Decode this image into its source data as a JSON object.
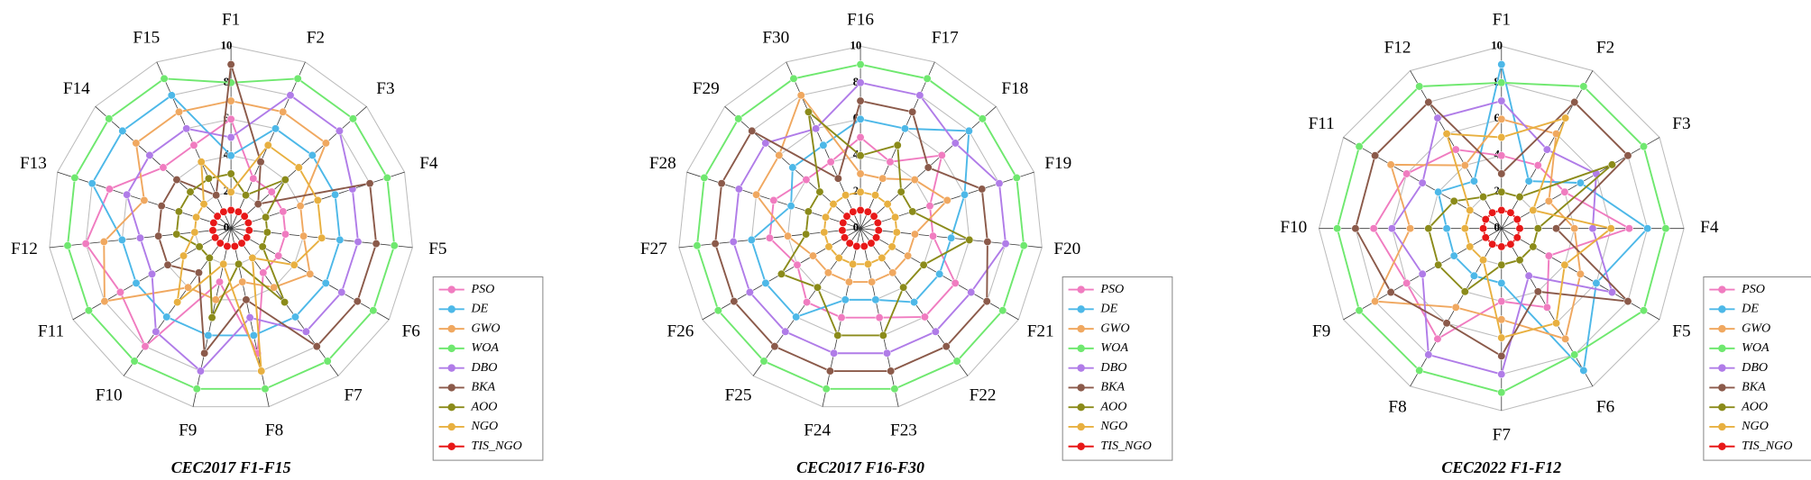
{
  "chart_data": [
    {
      "type": "radar",
      "title": "CEC2017 F1-F15",
      "categories": [
        "F1",
        "F2",
        "F3",
        "F4",
        "F5",
        "F6",
        "F7",
        "F8",
        "F9",
        "F10",
        "F11",
        "F12",
        "F13",
        "F14",
        "F15"
      ],
      "ylim": [
        0,
        10
      ],
      "yticks": [
        0,
        2,
        4,
        6,
        8,
        10
      ],
      "grid": true,
      "series": [
        {
          "name": "PSO",
          "color": "#f07cc0",
          "values": [
            6,
            3,
            3,
            3,
            3,
            3,
            3,
            7,
            3,
            8,
            7,
            8,
            7,
            5,
            5
          ]
        },
        {
          "name": "DE",
          "color": "#4db8e8",
          "values": [
            4,
            6,
            6,
            6,
            6,
            6,
            6,
            6,
            6,
            6,
            6,
            6,
            8,
            8,
            8
          ]
        },
        {
          "name": "GWO",
          "color": "#f0a860",
          "values": [
            7,
            7,
            7,
            4,
            4,
            5,
            4,
            3,
            4,
            4,
            8,
            7,
            5,
            7,
            7
          ]
        },
        {
          "name": "WOA",
          "color": "#6fe86f",
          "values": [
            8,
            9,
            9,
            9,
            9,
            9,
            9,
            9,
            9,
            9,
            9,
            9,
            9,
            9,
            9
          ]
        },
        {
          "name": "DBO",
          "color": "#b07ce8",
          "values": [
            5,
            8,
            8,
            7,
            7,
            7,
            7,
            5,
            8,
            7,
            5,
            5,
            6,
            6,
            6
          ]
        },
        {
          "name": "BKA",
          "color": "#8b5a4a",
          "values": [
            9,
            4,
            2,
            8,
            8,
            8,
            8,
            4,
            7,
            3,
            4,
            4,
            4,
            4,
            2
          ]
        },
        {
          "name": "AOO",
          "color": "#8b8b1a",
          "values": [
            3,
            2,
            4,
            2,
            2,
            2,
            5,
            2,
            5,
            2,
            2,
            3,
            3,
            3,
            3
          ]
        },
        {
          "name": "NGO",
          "color": "#e8b040",
          "values": [
            2,
            5,
            5,
            5,
            5,
            4,
            2,
            8,
            2,
            5,
            3,
            2,
            2,
            2,
            4
          ]
        },
        {
          "name": "TIS_NGO",
          "color": "#e81818",
          "values": [
            1,
            1,
            1,
            1,
            1,
            1,
            1,
            1,
            1,
            1,
            1,
            1,
            1,
            1,
            1
          ]
        }
      ]
    },
    {
      "type": "radar",
      "title": "CEC2017 F16-F30",
      "categories": [
        "F16",
        "F17",
        "F18",
        "F19",
        "F20",
        "F21",
        "F22",
        "F23",
        "F24",
        "F25",
        "F26",
        "F27",
        "F28",
        "F29",
        "F30"
      ],
      "ylim": [
        0,
        10
      ],
      "yticks": [
        0,
        2,
        4,
        6,
        8,
        10
      ],
      "grid": true,
      "series": [
        {
          "name": "PSO",
          "color": "#f07cc0",
          "values": [
            5,
            4,
            6,
            4,
            4,
            6,
            6,
            5,
            5,
            5,
            4,
            5,
            5,
            4,
            4
          ]
        },
        {
          "name": "DE",
          "color": "#4db8e8",
          "values": [
            6,
            6,
            8,
            6,
            5,
            5,
            5,
            4,
            4,
            6,
            6,
            6,
            4,
            5,
            5
          ]
        },
        {
          "name": "GWO",
          "color": "#f0a860",
          "values": [
            3,
            3,
            4,
            5,
            3,
            3,
            3,
            3,
            3,
            3,
            3,
            4,
            6,
            6,
            8
          ]
        },
        {
          "name": "WOA",
          "color": "#6fe86f",
          "values": [
            9,
            9,
            9,
            9,
            9,
            9,
            9,
            9,
            9,
            9,
            9,
            9,
            9,
            9,
            9
          ]
        },
        {
          "name": "DBO",
          "color": "#b07ce8",
          "values": [
            8,
            8,
            7,
            8,
            8,
            7,
            7,
            7,
            7,
            7,
            7,
            7,
            7,
            7,
            6
          ]
        },
        {
          "name": "BKA",
          "color": "#8b5a4a",
          "values": [
            7,
            7,
            5,
            7,
            7,
            8,
            8,
            8,
            8,
            8,
            8,
            8,
            8,
            8,
            3
          ]
        },
        {
          "name": "AOO",
          "color": "#8b8b1a",
          "values": [
            4,
            5,
            3,
            3,
            6,
            4,
            4,
            6,
            6,
            4,
            5,
            3,
            3,
            3,
            7
          ]
        },
        {
          "name": "NGO",
          "color": "#e8b040",
          "values": [
            2,
            2,
            2,
            2,
            2,
            2,
            2,
            2,
            2,
            2,
            2,
            2,
            2,
            2,
            2
          ]
        },
        {
          "name": "TIS_NGO",
          "color": "#e81818",
          "values": [
            1,
            1,
            1,
            1,
            1,
            1,
            1,
            1,
            1,
            1,
            1,
            1,
            1,
            1,
            1
          ]
        }
      ]
    },
    {
      "type": "radar",
      "title": "CEC2022 F1-F12",
      "categories": [
        "F1",
        "F2",
        "F3",
        "F4",
        "F5",
        "F6",
        "F7",
        "F8",
        "F9",
        "F10",
        "F11",
        "F12"
      ],
      "ylim": [
        0,
        10
      ],
      "yticks": [
        0,
        2,
        4,
        6,
        8,
        10
      ],
      "grid": true,
      "series": [
        {
          "name": "PSO",
          "color": "#f07cc0",
          "values": [
            4,
            4,
            4,
            7,
            3,
            5,
            4,
            7,
            6,
            7,
            6,
            5
          ]
        },
        {
          "name": "DE",
          "color": "#4db8e8",
          "values": [
            9,
            3,
            5,
            8,
            6,
            9,
            3,
            3,
            3,
            3,
            4,
            3
          ]
        },
        {
          "name": "GWO",
          "color": "#f0a860",
          "values": [
            6,
            6,
            3,
            4,
            5,
            7,
            5,
            5,
            8,
            5,
            7,
            4
          ]
        },
        {
          "name": "WOA",
          "color": "#6fe86f",
          "values": [
            8,
            9,
            9,
            9,
            9,
            8,
            9,
            9,
            9,
            9,
            9,
            9
          ]
        },
        {
          "name": "DBO",
          "color": "#b07ce8",
          "values": [
            7,
            5,
            6,
            5,
            7,
            3,
            8,
            8,
            5,
            6,
            5,
            7
          ]
        },
        {
          "name": "BKA",
          "color": "#8b5a4a",
          "values": [
            3,
            8,
            8,
            3,
            8,
            4,
            7,
            6,
            7,
            8,
            8,
            8
          ]
        },
        {
          "name": "AOO",
          "color": "#8b8b1a",
          "values": [
            2,
            2,
            7,
            2,
            2,
            2,
            2,
            4,
            4,
            4,
            3,
            2
          ]
        },
        {
          "name": "NGO",
          "color": "#e8b040",
          "values": [
            5,
            7,
            2,
            6,
            4,
            6,
            6,
            2,
            2,
            2,
            2,
            6
          ]
        },
        {
          "name": "TIS_NGO",
          "color": "#e81818",
          "values": [
            1,
            1,
            1,
            1,
            1,
            1,
            1,
            1,
            1,
            1,
            1,
            1
          ]
        }
      ]
    }
  ]
}
